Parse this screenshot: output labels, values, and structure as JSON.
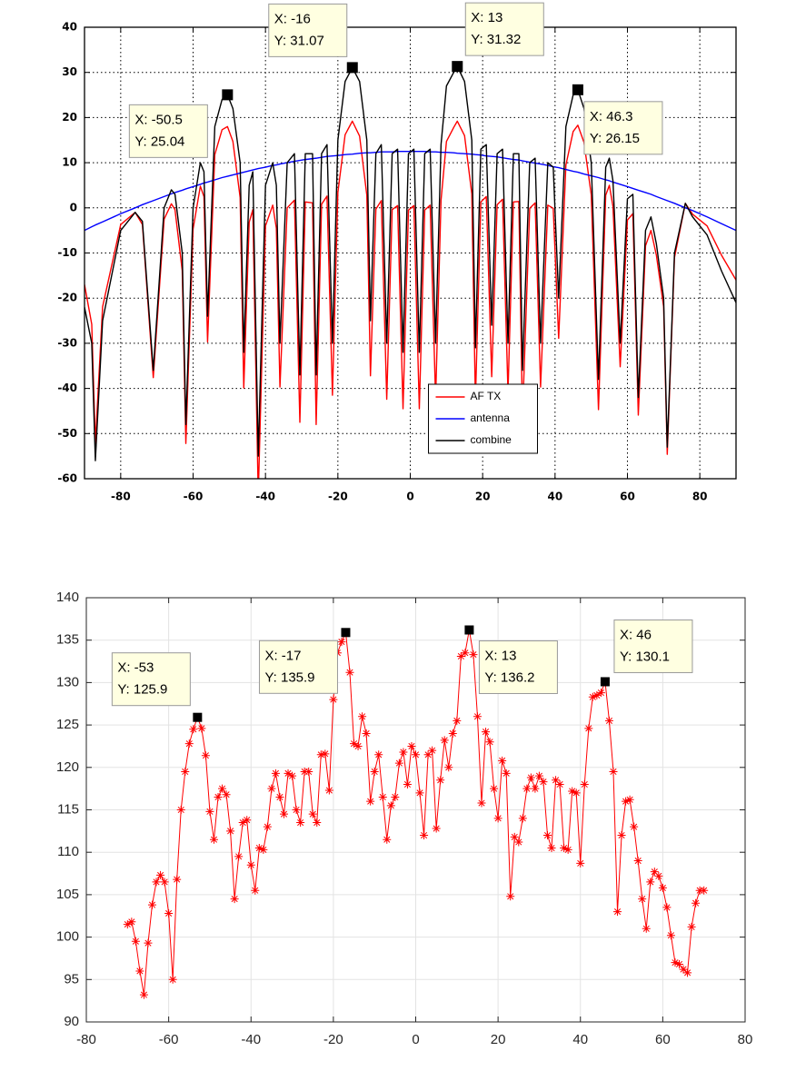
{
  "chart_data": [
    {
      "type": "line",
      "x": [
        -90,
        -88,
        -87,
        -85,
        -80,
        -76,
        -74,
        -71,
        -68,
        -66,
        -65,
        -63,
        -62,
        -60,
        -58,
        -57,
        -56,
        -54,
        -52,
        -50.5,
        -49,
        -47,
        -46,
        -44.5,
        -43.5,
        -42,
        -40,
        -38,
        -37,
        -36,
        -34,
        -32,
        -30.5,
        -29,
        -27,
        -26,
        -24.5,
        -23,
        -21.5,
        -20,
        -18,
        -16,
        -14,
        -12,
        -11,
        -9.5,
        -8,
        -6.5,
        -5,
        -3.5,
        -2,
        -0.5,
        1,
        2.5,
        4,
        5.5,
        7,
        8.5,
        10,
        12,
        13,
        15,
        17,
        18,
        19.5,
        21,
        22.5,
        24,
        25.5,
        27,
        28.5,
        30,
        31,
        33,
        34.5,
        36,
        38,
        39.5,
        41,
        43,
        45,
        46.3,
        48,
        50,
        52,
        54,
        55,
        56,
        58,
        60,
        61.5,
        63,
        65,
        66.5,
        68,
        70,
        71,
        73,
        76,
        78,
        82,
        86,
        90
      ],
      "series": [
        {
          "name": "AF TX",
          "color": "#ff0000",
          "values": [
            -17,
            -25.8,
            -52.2,
            -21.9,
            -3.7,
            -1,
            -3.7,
            -37.6,
            -2.5,
            0.9,
            -0.4,
            -13.9,
            -52.2,
            -4.7,
            4.8,
            2.5,
            -29.7,
            11.8,
            17.3,
            18.0,
            14.7,
            2.3,
            -39.9,
            -3.2,
            -0.4,
            -63.7,
            -4,
            0.6,
            -4.5,
            -39.7,
            0,
            1.7,
            -47.5,
            1.3,
            1.1,
            -48,
            0.8,
            2.6,
            -41.5,
            3.4,
            16.2,
            19.2,
            15.9,
            2.8,
            -37.2,
            -0.3,
            1.6,
            -42.4,
            -0.4,
            0.5,
            -44.5,
            -0.5,
            0.5,
            -44.5,
            -0.5,
            0.6,
            -42.4,
            1.7,
            14.7,
            17.8,
            19.2,
            16,
            3.1,
            -42.8,
            1.3,
            2.5,
            -37.4,
            0.7,
            1.9,
            -40.9,
            1.3,
            1.4,
            -46.4,
            -0.1,
            1.1,
            -39.7,
            0.6,
            -0.1,
            -28.9,
            9.5,
            16.9,
            18.3,
            14.5,
            2.9,
            -44.7,
            2.8,
            5,
            0.3,
            -35.2,
            -2.7,
            -1.3,
            -45.9,
            -8.4,
            -5,
            -10.5,
            -21.9,
            -54.6,
            -11,
            1,
            -1.4,
            -4,
            -10.5,
            -16
          ]
        },
        {
          "name": "antenna",
          "color": "#0000ff",
          "values": [
            -5,
            -4.2,
            -3.8,
            -3.1,
            -1.3,
            0,
            0.7,
            1.6,
            2.5,
            3.1,
            3.4,
            3.9,
            4.2,
            4.7,
            5.2,
            5.5,
            5.7,
            6.2,
            6.7,
            7.0,
            7.3,
            7.7,
            7.9,
            8.2,
            8.4,
            8.7,
            9.0,
            9.4,
            9.5,
            9.7,
            10.0,
            10.3,
            10.5,
            10.7,
            10.9,
            11.0,
            11.2,
            11.4,
            11.5,
            11.6,
            11.8,
            11.9,
            12.1,
            12.2,
            12.2,
            12.3,
            12.4,
            12.4,
            12.4,
            12.5,
            12.5,
            12.5,
            12.5,
            12.5,
            12.5,
            12.4,
            12.4,
            12.3,
            12.3,
            12.2,
            12.1,
            12.0,
            11.9,
            11.8,
            11.7,
            11.5,
            11.4,
            11.3,
            11.1,
            10.9,
            10.7,
            10.6,
            10.4,
            10.1,
            9.9,
            9.7,
            9.4,
            9.1,
            8.9,
            8.5,
            8.1,
            7.9,
            7.5,
            7.1,
            6.7,
            6.2,
            6.0,
            5.7,
            5.2,
            4.7,
            4.3,
            3.9,
            3.4,
            3.0,
            2.5,
            1.9,
            1.6,
            1.0,
            0,
            -0.6,
            -2.0,
            -3.5,
            -5
          ]
        },
        {
          "name": "combine",
          "color": "#000000",
          "values": [
            -22,
            -30,
            -56,
            -25,
            -5,
            -1,
            -3,
            -36,
            0,
            4,
            3,
            -10,
            -48,
            0,
            10,
            8,
            -24,
            18,
            24,
            25.04,
            22,
            10,
            -32,
            5,
            8,
            -55,
            5,
            10,
            5,
            -30,
            10,
            12,
            -37,
            12,
            12,
            -37,
            12,
            14,
            -30,
            15,
            28,
            31.07,
            28,
            15,
            -25,
            12,
            14,
            -30,
            12,
            13,
            -32,
            12,
            13,
            -32,
            12,
            13,
            -30,
            14,
            27,
            30,
            31.32,
            28,
            15,
            -31,
            13,
            14,
            -26,
            12,
            13,
            -30,
            12,
            12,
            -36,
            10,
            11,
            -30,
            10,
            9,
            -20,
            18,
            25,
            26.15,
            22,
            10,
            -38,
            9,
            11,
            6,
            -30,
            2,
            3,
            -42,
            -5,
            -2,
            -8,
            -20,
            -53,
            -10,
            1,
            -2,
            -6,
            -14,
            -21
          ]
        }
      ],
      "xlim": [
        -90,
        90
      ],
      "xticks": [
        -80,
        -60,
        -40,
        -20,
        0,
        20,
        40,
        60,
        80
      ],
      "ylim": [
        -60,
        40
      ],
      "yticks": [
        -60,
        -50,
        -40,
        -30,
        -20,
        -10,
        0,
        10,
        20,
        30,
        40
      ],
      "grid": true,
      "legend": "lower center",
      "annotations": [
        {
          "x": -50.5,
          "y": 25.04,
          "text": [
            "X: -50.5",
            "Y: 25.04"
          ]
        },
        {
          "x": -16,
          "y": 31.07,
          "text": [
            "X: -16",
            "Y: 31.07"
          ]
        },
        {
          "x": 13,
          "y": 31.32,
          "text": [
            "X: 13",
            "Y: 31.32"
          ]
        },
        {
          "x": 46.3,
          "y": 26.15,
          "text": [
            "X: 46.3",
            "Y: 26.15"
          ]
        }
      ]
    },
    {
      "type": "line",
      "marker": "*",
      "x": [
        -70,
        -69,
        -68,
        -67,
        -66,
        -65,
        -64,
        -63,
        -62,
        -61,
        -60,
        -59,
        -58,
        -57,
        -56,
        -55,
        -54,
        -53,
        -52,
        -51,
        -50,
        -49,
        -48,
        -47,
        -46,
        -45,
        -44,
        -43,
        -42,
        -41,
        -40,
        -39,
        -38,
        -37,
        -36,
        -35,
        -34,
        -33,
        -32,
        -31,
        -30,
        -29,
        -28,
        -27,
        -26,
        -25,
        -24,
        -23,
        -22,
        -21,
        -20,
        -19,
        -18,
        -17,
        -16,
        -15,
        -14,
        -13,
        -12,
        -11,
        -10,
        -9,
        -8,
        -7,
        -6,
        -5,
        -4,
        -3,
        -2,
        -1,
        0,
        1,
        2,
        3,
        4,
        5,
        6,
        7,
        8,
        9,
        10,
        11,
        12,
        13,
        14,
        15,
        16,
        17,
        18,
        19,
        20,
        21,
        22,
        23,
        24,
        25,
        26,
        27,
        28,
        29,
        30,
        31,
        32,
        33,
        34,
        35,
        36,
        37,
        38,
        39,
        40,
        41,
        42,
        43,
        44,
        45,
        46,
        47,
        48,
        49,
        50,
        51,
        52,
        53,
        54,
        55,
        56,
        57,
        58,
        59,
        60,
        61,
        62,
        63,
        64,
        65,
        66,
        67,
        68,
        69,
        70
      ],
      "series": [
        {
          "color": "#ff0000",
          "values": [
            101.5,
            101.8,
            99.5,
            96,
            93.2,
            99.3,
            103.8,
            106.5,
            107.3,
            106.5,
            102.8,
            95,
            106.8,
            115,
            119.5,
            122.8,
            124.5,
            125.9,
            124.6,
            121.4,
            114.8,
            111.5,
            116.5,
            117.5,
            116.8,
            112.5,
            104.5,
            109.5,
            113.5,
            113.8,
            108.5,
            105.5,
            110.5,
            110.3,
            113,
            117.5,
            119.3,
            116.5,
            114.5,
            119.3,
            119,
            115,
            113.5,
            119.5,
            119.5,
            114.5,
            113.5,
            121.5,
            121.6,
            117.3,
            128,
            133.5,
            134.8,
            135.9,
            131.2,
            122.8,
            122.5,
            126,
            124,
            116,
            119.5,
            121.5,
            116.5,
            111.5,
            115.5,
            116.5,
            120.5,
            121.8,
            118,
            122.5,
            121.5,
            117,
            112,
            121.5,
            122,
            112.8,
            118.5,
            123.2,
            120,
            124,
            125.5,
            133.1,
            133.5,
            136.2,
            133.3,
            126,
            115.8,
            124.2,
            123,
            117.5,
            114,
            120.8,
            119.3,
            104.8,
            111.8,
            111.2,
            114,
            117.5,
            118.8,
            117.5,
            119,
            118.3,
            112,
            110.5,
            118.5,
            118,
            110.5,
            110.3,
            117.2,
            117,
            108.7,
            118,
            124.6,
            128.3,
            128.5,
            128.8,
            130.1,
            125.5,
            119.5,
            103,
            112,
            116,
            116.2,
            113,
            109,
            104.5,
            101,
            106.5,
            107.7,
            107.2,
            105.8,
            103.5,
            100.2,
            97,
            96.8,
            96.2,
            95.8,
            101.2,
            104,
            105.5,
            105.5
          ]
        }
      ],
      "xlim": [
        -80,
        80
      ],
      "xticks": [
        -80,
        -60,
        -40,
        -20,
        0,
        20,
        40,
        60,
        80
      ],
      "ylim": [
        90,
        140
      ],
      "yticks": [
        90,
        95,
        100,
        105,
        110,
        115,
        120,
        125,
        130,
        135,
        140
      ],
      "grid": true,
      "annotations": [
        {
          "x": -53,
          "y": 125.9,
          "text": [
            "X: -53",
            "Y: 125.9"
          ]
        },
        {
          "x": -17,
          "y": 135.9,
          "text": [
            "X: -17",
            "Y: 135.9"
          ]
        },
        {
          "x": 13,
          "y": 136.2,
          "text": [
            "X: 13",
            "Y: 136.2"
          ]
        },
        {
          "x": 46,
          "y": 130.1,
          "text": [
            "X: 46",
            "Y: 130.1"
          ]
        }
      ]
    }
  ]
}
